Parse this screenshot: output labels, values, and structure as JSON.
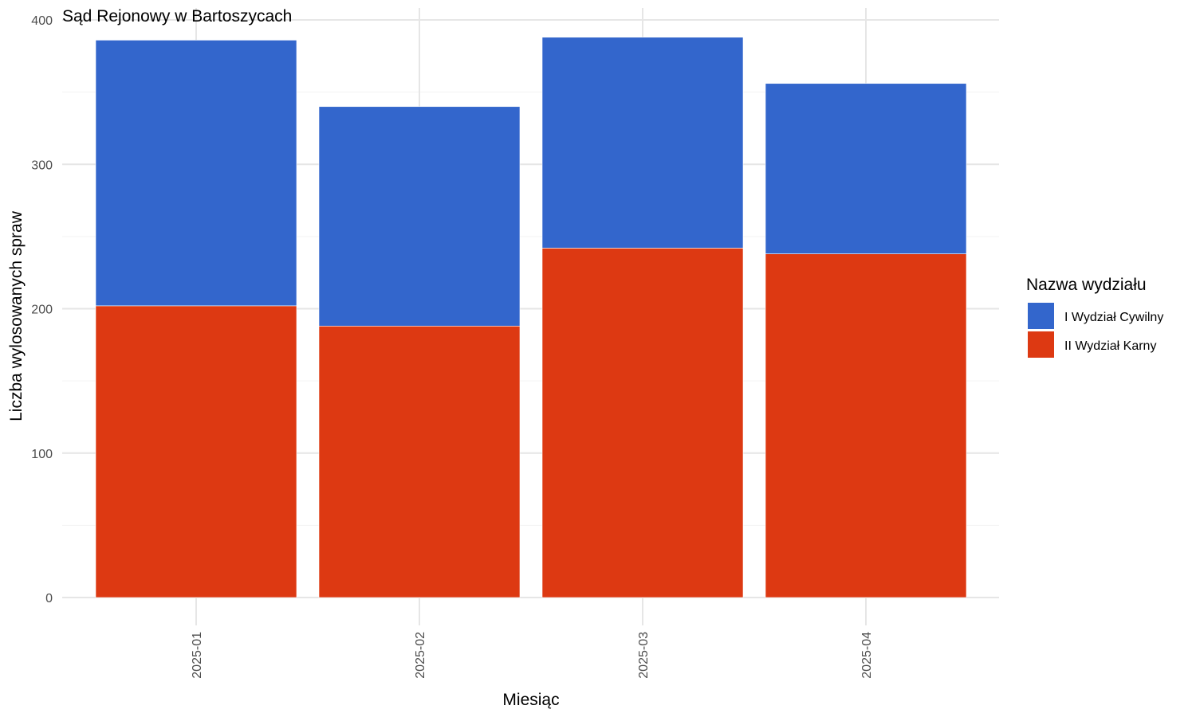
{
  "chart_data": {
    "type": "bar",
    "stacked": true,
    "title": "Sąd Rejonowy w Bartoszycach",
    "xlabel": "Miesiąc",
    "ylabel": "Liczba wylosowanych spraw",
    "categories": [
      "2025-01",
      "2025-02",
      "2025-03",
      "2025-04"
    ],
    "y_ticks": [
      0,
      100,
      200,
      300,
      400
    ],
    "ylim": [
      0,
      400
    ],
    "grid": true,
    "legend": {
      "title": "Nazwa wydziału",
      "position": "right"
    },
    "series": [
      {
        "name": "II Wydział Karny",
        "color": "#DD3912",
        "values": [
          202,
          188,
          242,
          238
        ]
      },
      {
        "name": "I Wydział Cywilny",
        "color": "#3366CC",
        "values": [
          184,
          152,
          146,
          118
        ]
      }
    ]
  }
}
